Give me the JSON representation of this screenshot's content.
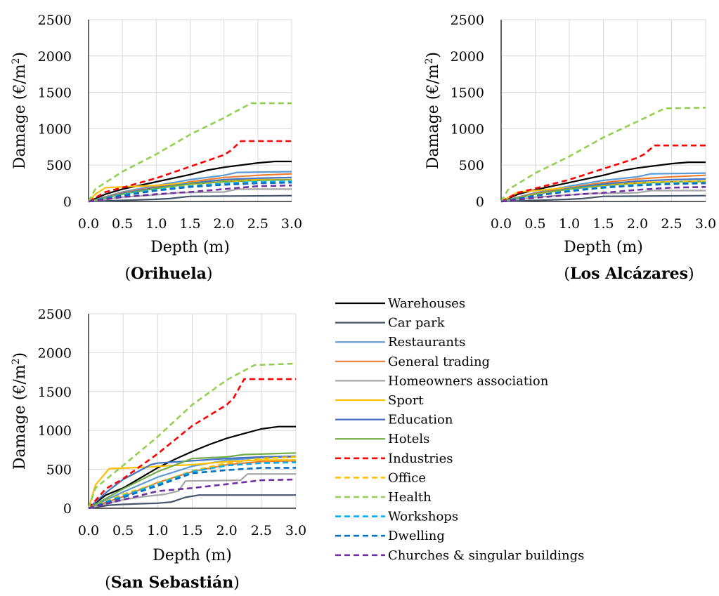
{
  "chart_data": [
    {
      "type": "line",
      "title": "Orihuela",
      "xlabel": "Depth (m)",
      "ylabel": "Damage (€/m2)",
      "xlim": [
        0,
        3
      ],
      "ylim": [
        0,
        2500
      ],
      "xticks": [
        "0.0",
        "0.5",
        "1.0",
        "1.5",
        "2.0",
        "2.5",
        "3.0"
      ],
      "yticks": [
        "0",
        "500",
        "1000",
        "1500",
        "2000",
        "2500"
      ],
      "grid": true,
      "series": [
        {
          "name": "Warehouses",
          "x": [
            0,
            0.25,
            0.5,
            1.0,
            1.5,
            1.75,
            2.0,
            2.5,
            2.75,
            3.0
          ],
          "y": [
            0,
            100,
            170,
            270,
            370,
            430,
            470,
            530,
            550,
            550
          ]
        },
        {
          "name": "Car park",
          "x": [
            0,
            1.0,
            1.2,
            1.5,
            3.0
          ],
          "y": [
            0,
            30,
            40,
            70,
            80
          ]
        },
        {
          "name": "Restaurants",
          "x": [
            0,
            0.5,
            1.0,
            1.5,
            2.0,
            2.2,
            3.0
          ],
          "y": [
            0,
            130,
            220,
            300,
            360,
            400,
            410
          ]
        },
        {
          "name": "General trading",
          "x": [
            0,
            0.5,
            1.0,
            1.5,
            2.0,
            2.5,
            3.0
          ],
          "y": [
            0,
            120,
            200,
            270,
            330,
            360,
            380
          ]
        },
        {
          "name": "Homeowners association",
          "x": [
            0,
            0.5,
            1.0,
            1.3,
            2.0,
            2.2,
            3.0
          ],
          "y": [
            0,
            60,
            90,
            120,
            130,
            170,
            170
          ]
        },
        {
          "name": "Sport",
          "x": [
            0,
            0.1,
            0.25,
            0.75,
            1.0,
            1.5,
            2.0,
            2.5,
            3.0
          ],
          "y": [
            0,
            100,
            190,
            210,
            220,
            260,
            290,
            300,
            300
          ]
        },
        {
          "name": "Education",
          "x": [
            0,
            0.5,
            1.0,
            1.5,
            2.0,
            2.5,
            3.0
          ],
          "y": [
            0,
            110,
            190,
            250,
            300,
            320,
            330
          ]
        },
        {
          "name": "Hotels",
          "x": [
            0,
            0.5,
            1.0,
            1.5,
            2.0,
            2.5,
            3.0
          ],
          "y": [
            0,
            100,
            180,
            240,
            270,
            290,
            300
          ]
        },
        {
          "name": "Industries",
          "x": [
            0,
            0.25,
            0.5,
            1.0,
            1.5,
            2.0,
            2.1,
            2.25,
            3.0
          ],
          "y": [
            0,
            130,
            190,
            320,
            480,
            640,
            700,
            830,
            830
          ]
        },
        {
          "name": "Office",
          "x": [
            0,
            0.5,
            1.0,
            1.5,
            2.0,
            2.5,
            3.0
          ],
          "y": [
            0,
            90,
            160,
            220,
            260,
            280,
            290
          ]
        },
        {
          "name": "Health",
          "x": [
            0,
            0.1,
            0.5,
            1.0,
            1.5,
            2.0,
            2.4,
            3.0
          ],
          "y": [
            0,
            170,
            410,
            650,
            920,
            1150,
            1350,
            1350
          ]
        },
        {
          "name": "Workshops",
          "x": [
            0,
            0.5,
            1.0,
            1.5,
            2.0,
            2.5,
            3.0
          ],
          "y": [
            0,
            90,
            160,
            210,
            250,
            270,
            280
          ]
        },
        {
          "name": "Dwelling",
          "x": [
            0,
            0.5,
            1.0,
            1.5,
            2.0,
            2.5,
            3.0
          ],
          "y": [
            0,
            80,
            150,
            200,
            230,
            250,
            260
          ]
        },
        {
          "name": "Churches & singular buildings",
          "x": [
            0,
            0.5,
            1.0,
            1.5,
            2.0,
            2.5,
            3.0
          ],
          "y": [
            0,
            60,
            100,
            130,
            170,
            210,
            220
          ]
        }
      ]
    },
    {
      "type": "line",
      "title": "Los Alcázares",
      "xlabel": "Depth (m)",
      "ylabel": "Damage (€/m2)",
      "xlim": [
        0,
        3
      ],
      "ylim": [
        0,
        2500
      ],
      "xticks": [
        "0.0",
        "0.5",
        "1.0",
        "1.5",
        "2.0",
        "2.5",
        "3.0"
      ],
      "yticks": [
        "0",
        "500",
        "1000",
        "1500",
        "2000",
        "2500"
      ],
      "grid": true,
      "series": [
        {
          "name": "Warehouses",
          "x": [
            0,
            0.25,
            0.5,
            1.0,
            1.5,
            1.75,
            2.0,
            2.5,
            2.75,
            3.0
          ],
          "y": [
            0,
            100,
            160,
            260,
            360,
            420,
            460,
            520,
            540,
            540
          ]
        },
        {
          "name": "Car park",
          "x": [
            0,
            1.0,
            1.2,
            1.5,
            3.0
          ],
          "y": [
            0,
            30,
            40,
            70,
            80
          ]
        },
        {
          "name": "Restaurants",
          "x": [
            0,
            0.5,
            1.0,
            1.5,
            2.0,
            2.2,
            3.0
          ],
          "y": [
            0,
            120,
            210,
            290,
            340,
            380,
            390
          ]
        },
        {
          "name": "General trading",
          "x": [
            0,
            0.5,
            1.0,
            1.5,
            2.0,
            2.5,
            3.0
          ],
          "y": [
            0,
            110,
            190,
            260,
            310,
            340,
            360
          ]
        },
        {
          "name": "Homeowners association",
          "x": [
            0,
            0.5,
            1.0,
            1.3,
            2.0,
            2.2,
            3.0
          ],
          "y": [
            0,
            60,
            90,
            110,
            120,
            150,
            150
          ]
        },
        {
          "name": "Sport",
          "x": [
            0,
            0.25,
            0.5,
            1.0,
            1.5,
            2.0,
            2.5,
            3.0
          ],
          "y": [
            0,
            130,
            150,
            190,
            230,
            260,
            270,
            270
          ]
        },
        {
          "name": "Education",
          "x": [
            0,
            0.5,
            1.0,
            1.5,
            2.0,
            2.5,
            3.0
          ],
          "y": [
            0,
            100,
            180,
            240,
            280,
            300,
            310
          ]
        },
        {
          "name": "Hotels",
          "x": [
            0,
            0.5,
            1.0,
            1.5,
            2.0,
            2.5,
            3.0
          ],
          "y": [
            0,
            100,
            170,
            220,
            250,
            270,
            280
          ]
        },
        {
          "name": "Industries",
          "x": [
            0,
            0.25,
            0.5,
            1.0,
            1.5,
            2.0,
            2.1,
            2.25,
            3.0
          ],
          "y": [
            0,
            120,
            180,
            300,
            450,
            600,
            650,
            770,
            770
          ]
        },
        {
          "name": "Office",
          "x": [
            0,
            0.5,
            1.0,
            1.5,
            2.0,
            2.5,
            3.0
          ],
          "y": [
            0,
            90,
            150,
            210,
            250,
            270,
            280
          ]
        },
        {
          "name": "Health",
          "x": [
            0,
            0.1,
            0.5,
            1.0,
            1.5,
            2.0,
            2.4,
            3.0
          ],
          "y": [
            0,
            160,
            390,
            620,
            880,
            1100,
            1280,
            1290
          ]
        },
        {
          "name": "Workshops",
          "x": [
            0,
            0.5,
            1.0,
            1.5,
            2.0,
            2.5,
            3.0
          ],
          "y": [
            0,
            80,
            150,
            200,
            230,
            250,
            260
          ]
        },
        {
          "name": "Dwelling",
          "x": [
            0,
            0.5,
            1.0,
            1.5,
            2.0,
            2.5,
            3.0
          ],
          "y": [
            0,
            80,
            140,
            190,
            220,
            240,
            250
          ]
        },
        {
          "name": "Churches & singular buildings",
          "x": [
            0,
            0.5,
            1.0,
            1.5,
            2.0,
            2.5,
            3.0
          ],
          "y": [
            0,
            50,
            90,
            120,
            160,
            190,
            200
          ]
        }
      ]
    },
    {
      "type": "line",
      "title": "San Sebastián",
      "xlabel": "Depth (m)",
      "ylabel": "Damage (€/m2)",
      "xlim": [
        0,
        3
      ],
      "ylim": [
        0,
        2500
      ],
      "xticks": [
        "0.0",
        "0.5",
        "1.0",
        "1.5",
        "2.0",
        "2.5",
        "3.0"
      ],
      "yticks": [
        "0",
        "500",
        "1000",
        "1500",
        "2000",
        "2500"
      ],
      "grid": true,
      "series": [
        {
          "name": "Warehouses",
          "x": [
            0,
            0.25,
            0.5,
            0.75,
            1.0,
            1.25,
            1.5,
            1.75,
            2.0,
            2.25,
            2.5,
            2.75,
            3.0
          ],
          "y": [
            0,
            170,
            260,
            390,
            520,
            630,
            730,
            820,
            900,
            960,
            1020,
            1050,
            1050
          ]
        },
        {
          "name": "Car park",
          "x": [
            0,
            0.3,
            0.5,
            0.8,
            1.0,
            1.2,
            1.4,
            1.6,
            2.0,
            3.0
          ],
          "y": [
            0,
            40,
            50,
            60,
            65,
            80,
            140,
            170,
            170,
            170
          ]
        },
        {
          "name": "Restaurants",
          "x": [
            0,
            0.5,
            1.0,
            1.5,
            2.0,
            2.5,
            3.0
          ],
          "y": [
            0,
            210,
            400,
            540,
            620,
            650,
            660
          ]
        },
        {
          "name": "General trading",
          "x": [
            0,
            0.5,
            1.0,
            1.5,
            2.0,
            2.5,
            3.0
          ],
          "y": [
            0,
            150,
            330,
            470,
            560,
            600,
            610
          ]
        },
        {
          "name": "Homeowners association",
          "x": [
            0,
            0.5,
            0.8,
            1.1,
            1.3,
            1.4,
            2.2,
            2.3,
            3.0
          ],
          "y": [
            0,
            110,
            150,
            180,
            220,
            350,
            360,
            440,
            440
          ]
        },
        {
          "name": "Sport",
          "x": [
            0,
            0.1,
            0.3,
            0.9,
            1.0,
            1.5,
            2.0,
            2.5,
            3.0
          ],
          "y": [
            0,
            300,
            510,
            530,
            540,
            560,
            600,
            620,
            620
          ]
        },
        {
          "name": "Education",
          "x": [
            0,
            0.25,
            0.5,
            0.9,
            1.0,
            1.5,
            2.0,
            2.5,
            3.0
          ],
          "y": [
            0,
            200,
            370,
            560,
            580,
            610,
            640,
            660,
            670
          ]
        },
        {
          "name": "Hotels",
          "x": [
            0,
            0.5,
            1.0,
            1.5,
            2.0,
            2.25,
            3.0
          ],
          "y": [
            0,
            250,
            470,
            640,
            660,
            690,
            710
          ]
        },
        {
          "name": "Industries",
          "x": [
            0,
            0.25,
            0.5,
            1.0,
            1.5,
            2.0,
            2.1,
            2.25,
            3.0
          ],
          "y": [
            0,
            250,
            380,
            700,
            1060,
            1330,
            1420,
            1660,
            1660
          ]
        },
        {
          "name": "Office",
          "x": [
            0,
            0.5,
            1.0,
            1.5,
            2.0,
            2.5,
            3.0
          ],
          "y": [
            0,
            180,
            320,
            480,
            580,
            640,
            660
          ]
        },
        {
          "name": "Health",
          "x": [
            0,
            0.1,
            0.5,
            1.0,
            1.5,
            2.0,
            2.4,
            3.0
          ],
          "y": [
            0,
            260,
            550,
            920,
            1330,
            1650,
            1840,
            1860
          ]
        },
        {
          "name": "Workshops",
          "x": [
            0,
            0.5,
            1.0,
            1.5,
            2.0,
            2.5,
            3.0
          ],
          "y": [
            0,
            160,
            310,
            470,
            550,
            580,
            590
          ]
        },
        {
          "name": "Dwelling",
          "x": [
            0,
            0.5,
            1.0,
            1.5,
            2.0,
            2.5,
            3.0
          ],
          "y": [
            0,
            140,
            290,
            450,
            490,
            520,
            520
          ]
        },
        {
          "name": "Churches & singular buildings",
          "x": [
            0,
            0.5,
            1.0,
            1.5,
            2.0,
            2.5,
            3.0
          ],
          "y": [
            0,
            110,
            220,
            260,
            310,
            360,
            370
          ]
        }
      ]
    }
  ],
  "legend": [
    {
      "name": "Warehouses",
      "color": "#000000",
      "dash": false
    },
    {
      "name": "Car park",
      "color": "#44546a",
      "dash": false
    },
    {
      "name": "Restaurants",
      "color": "#5b9bd5",
      "dash": false
    },
    {
      "name": "General trading",
      "color": "#ed7d31",
      "dash": false
    },
    {
      "name": "Homeowners association",
      "color": "#a5a5a5",
      "dash": false
    },
    {
      "name": "Sport",
      "color": "#ffc000",
      "dash": false
    },
    {
      "name": "Education",
      "color": "#4472c4",
      "dash": false
    },
    {
      "name": "Hotels",
      "color": "#70ad47",
      "dash": false
    },
    {
      "name": "Industries",
      "color": "#ff0000",
      "dash": true
    },
    {
      "name": "Office",
      "color": "#ffc000",
      "dash": true
    },
    {
      "name": "Health",
      "color": "#92d050",
      "dash": true
    },
    {
      "name": "Workshops",
      "color": "#00b0f0",
      "dash": true
    },
    {
      "name": "Dwelling",
      "color": "#0070c0",
      "dash": true
    },
    {
      "name": "Churches & singular buildings",
      "color": "#7030a0",
      "dash": true
    }
  ]
}
